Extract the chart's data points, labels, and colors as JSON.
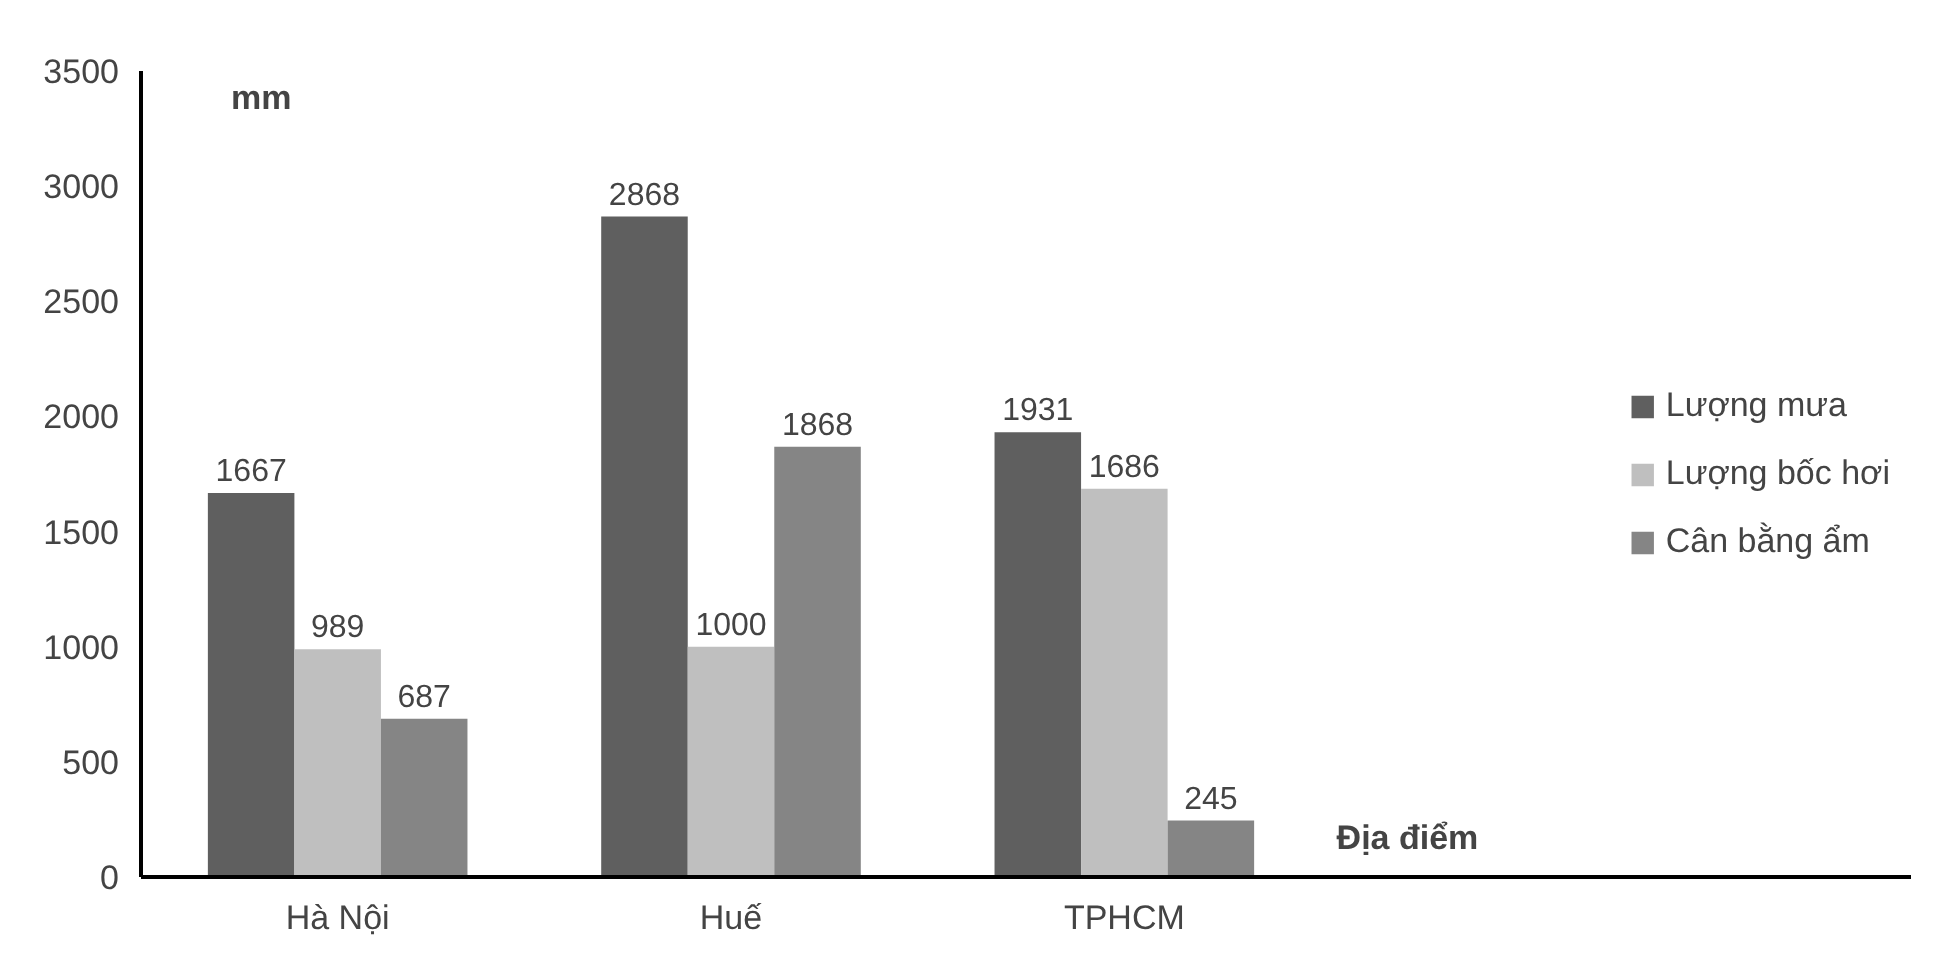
{
  "chart_data": {
    "type": "bar",
    "categories": [
      "Hà Nội",
      "Huế",
      "TPHCM"
    ],
    "series": [
      {
        "name": "Lượng mưa",
        "color": "#5f5f5f",
        "values": [
          1667,
          2868,
          1931
        ]
      },
      {
        "name": "Lượng bốc hơi",
        "color": "#bfbfbf",
        "values": [
          989,
          1000,
          1686
        ]
      },
      {
        "name": "Cân bằng ẩm",
        "color": "#858585",
        "values": [
          687,
          1868,
          245
        ]
      }
    ],
    "ylabel": "mm",
    "xlabel": "Địa điểm",
    "ylim": [
      0,
      3500
    ],
    "yticks": [
      0,
      500,
      1000,
      1500,
      2000,
      2500,
      3000,
      3500
    ],
    "data_labels": true,
    "grid": false,
    "legend": "right"
  }
}
